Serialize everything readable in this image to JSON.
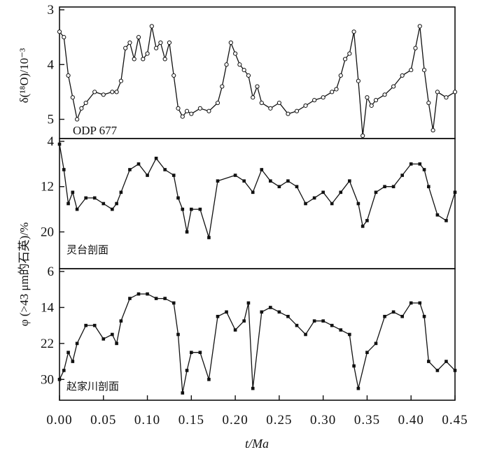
{
  "chart_data": [
    {
      "type": "line",
      "panel": "top",
      "label": "ODP 677",
      "ylabel": "δ(¹⁸O)/10⁻³",
      "ylim": [
        3,
        5.3
      ],
      "y_inverted": true,
      "yticks": [
        "3",
        "4",
        "5"
      ],
      "x": [
        0.0,
        0.005,
        0.01,
        0.015,
        0.02,
        0.025,
        0.03,
        0.04,
        0.05,
        0.06,
        0.065,
        0.07,
        0.075,
        0.08,
        0.085,
        0.09,
        0.095,
        0.1,
        0.105,
        0.11,
        0.115,
        0.12,
        0.125,
        0.13,
        0.135,
        0.14,
        0.145,
        0.15,
        0.16,
        0.17,
        0.18,
        0.185,
        0.19,
        0.195,
        0.2,
        0.205,
        0.21,
        0.215,
        0.22,
        0.225,
        0.23,
        0.24,
        0.25,
        0.26,
        0.27,
        0.28,
        0.29,
        0.3,
        0.31,
        0.315,
        0.32,
        0.325,
        0.33,
        0.335,
        0.34,
        0.345,
        0.35,
        0.355,
        0.36,
        0.37,
        0.38,
        0.39,
        0.4,
        0.405,
        0.41,
        0.415,
        0.42,
        0.425,
        0.43,
        0.44,
        0.45
      ],
      "values": [
        3.4,
        3.5,
        4.2,
        4.6,
        5.0,
        4.8,
        4.7,
        4.5,
        4.55,
        4.5,
        4.5,
        4.3,
        3.7,
        3.6,
        3.9,
        3.5,
        3.9,
        3.8,
        3.3,
        3.7,
        3.6,
        3.9,
        3.6,
        4.2,
        4.8,
        4.95,
        4.85,
        4.9,
        4.8,
        4.85,
        4.7,
        4.4,
        4.0,
        3.6,
        3.8,
        4.0,
        4.1,
        4.2,
        4.6,
        4.4,
        4.7,
        4.8,
        4.7,
        4.9,
        4.85,
        4.75,
        4.65,
        4.6,
        4.5,
        4.45,
        4.2,
        3.9,
        3.8,
        3.4,
        4.3,
        5.3,
        4.6,
        4.75,
        4.65,
        4.55,
        4.4,
        4.2,
        4.1,
        3.7,
        3.3,
        4.1,
        4.7,
        5.2,
        4.5,
        4.6,
        4.5
      ]
    },
    {
      "type": "scatter",
      "panel": "middle",
      "label": "灵台剖面",
      "ylim": [
        4,
        26
      ],
      "y_inverted": true,
      "yticks": [
        "4",
        "12",
        "20"
      ],
      "x": [
        0.0,
        0.005,
        0.01,
        0.015,
        0.02,
        0.03,
        0.04,
        0.05,
        0.06,
        0.065,
        0.07,
        0.08,
        0.09,
        0.1,
        0.11,
        0.12,
        0.13,
        0.135,
        0.14,
        0.145,
        0.15,
        0.16,
        0.17,
        0.18,
        0.2,
        0.21,
        0.22,
        0.23,
        0.24,
        0.25,
        0.26,
        0.27,
        0.28,
        0.29,
        0.3,
        0.31,
        0.32,
        0.33,
        0.34,
        0.345,
        0.35,
        0.36,
        0.37,
        0.38,
        0.39,
        0.4,
        0.41,
        0.415,
        0.42,
        0.43,
        0.44,
        0.45
      ],
      "values": [
        4.5,
        9,
        15,
        13,
        16,
        14,
        14,
        15,
        16,
        15,
        13,
        9,
        8,
        10,
        7,
        9,
        10,
        14,
        16,
        20,
        16,
        16,
        21,
        11,
        10,
        11,
        13,
        9,
        11,
        12,
        11,
        12,
        15,
        14,
        13,
        15,
        13,
        11,
        15,
        19,
        18,
        13,
        12,
        12,
        10,
        8,
        8,
        9,
        12,
        17,
        18,
        13
      ]
    },
    {
      "type": "scatter",
      "panel": "bottom",
      "label": "赵家川剖面",
      "ylim": [
        6,
        34
      ],
      "y_inverted": true,
      "yticks": [
        "6",
        "14",
        "22",
        "30"
      ],
      "x": [
        0.0,
        0.005,
        0.01,
        0.015,
        0.02,
        0.03,
        0.04,
        0.05,
        0.06,
        0.065,
        0.07,
        0.08,
        0.09,
        0.1,
        0.11,
        0.12,
        0.13,
        0.135,
        0.14,
        0.145,
        0.15,
        0.16,
        0.17,
        0.18,
        0.19,
        0.2,
        0.21,
        0.215,
        0.22,
        0.23,
        0.24,
        0.25,
        0.26,
        0.27,
        0.28,
        0.29,
        0.3,
        0.31,
        0.32,
        0.33,
        0.335,
        0.34,
        0.35,
        0.36,
        0.37,
        0.38,
        0.39,
        0.4,
        0.41,
        0.415,
        0.42,
        0.43,
        0.44,
        0.45
      ],
      "values": [
        30,
        28,
        24,
        26,
        22,
        18,
        18,
        21,
        20,
        22,
        17,
        12,
        11,
        11,
        12,
        12,
        13,
        20,
        33,
        28,
        24,
        24,
        30,
        16,
        15,
        19,
        17,
        13,
        32,
        15,
        14,
        15,
        16,
        18,
        20,
        17,
        17,
        18,
        19,
        20,
        27,
        32,
        24,
        22,
        16,
        15,
        16,
        13,
        13,
        16,
        26,
        28,
        26,
        28
      ]
    }
  ],
  "x_axis": {
    "ticks": [
      "0.00",
      "0.05",
      "0.10",
      "0.15",
      "0.20",
      "0.25",
      "0.30",
      "0.35",
      "0.40",
      "0.45"
    ],
    "xlabel": "t/Ma",
    "xlim": [
      0,
      0.45
    ]
  },
  "shared_ylabel": "φ (>43 μm的石英)/%",
  "style": {
    "ink": "#111111",
    "background": "#ffffff"
  }
}
